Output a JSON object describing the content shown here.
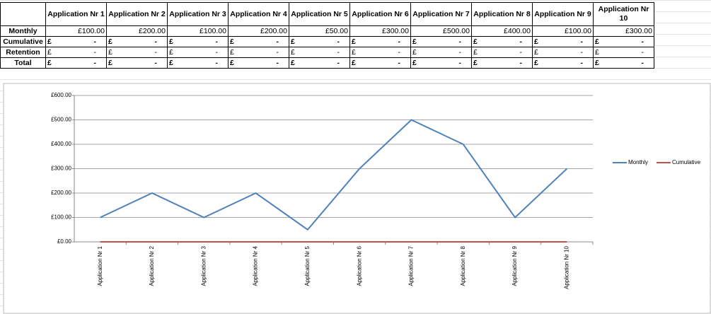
{
  "table": {
    "header": [
      "Application Nr 1",
      "Application Nr 2",
      "Application Nr 3",
      "Application Nr 4",
      "Application Nr 5",
      "Application Nr 6",
      "Application Nr 7",
      "Application Nr 8",
      "Application Nr 9",
      "Application Nr 10"
    ],
    "rows": [
      {
        "label": "Monthly",
        "cells": [
          "£100.00",
          "£200.00",
          "£100.00",
          "£200.00",
          "£50.00",
          "£300.00",
          "£500.00",
          "£400.00",
          "£100.00",
          "£300.00"
        ]
      },
      {
        "label": "Cumulative",
        "cells": [
          {
            "currency": "£",
            "amount": "-"
          },
          {
            "currency": "£",
            "amount": "-"
          },
          {
            "currency": "£",
            "amount": "-"
          },
          {
            "currency": "£",
            "amount": "-"
          },
          {
            "currency": "£",
            "amount": "-"
          },
          {
            "currency": "£",
            "amount": "-"
          },
          {
            "currency": "£",
            "amount": "-"
          },
          {
            "currency": "£",
            "amount": "-"
          },
          {
            "currency": "£",
            "amount": "-"
          },
          {
            "currency": "£",
            "amount": "-"
          }
        ]
      },
      {
        "label": "Retention",
        "cells": [
          {
            "currency": "£",
            "amount": "-"
          },
          {
            "currency": "£",
            "amount": "-"
          },
          {
            "currency": "£",
            "amount": "-"
          },
          {
            "currency": "£",
            "amount": "-"
          },
          {
            "currency": "£",
            "amount": "-"
          },
          {
            "currency": "£",
            "amount": "-"
          },
          {
            "currency": "£",
            "amount": "-"
          },
          {
            "currency": "£",
            "amount": "-"
          },
          {
            "currency": "£",
            "amount": "-"
          },
          {
            "currency": "£",
            "amount": "-"
          }
        ]
      },
      {
        "label": "Total",
        "cells": [
          {
            "currency": "£",
            "amount": "-"
          },
          {
            "currency": "£",
            "amount": "-"
          },
          {
            "currency": "£",
            "amount": "-"
          },
          {
            "currency": "£",
            "amount": "-"
          },
          {
            "currency": "£",
            "amount": "-"
          },
          {
            "currency": "£",
            "amount": "-"
          },
          {
            "currency": "£",
            "amount": "-"
          },
          {
            "currency": "£",
            "amount": "-"
          },
          {
            "currency": "£",
            "amount": "-"
          },
          {
            "currency": "£",
            "amount": "-"
          }
        ]
      }
    ]
  },
  "chart_data": {
    "type": "line",
    "categories": [
      "Application Nr 1",
      "Application Nr 2",
      "Application Nr 3",
      "Application Nr 4",
      "Application Nr 5",
      "Application Nr 6",
      "Application Nr 7",
      "Application Nr 8",
      "Application Nr 9",
      "Application Nr 10"
    ],
    "series": [
      {
        "name": "Monthly",
        "color": "#4f81bd",
        "values": [
          100,
          200,
          100,
          200,
          50,
          300,
          500,
          400,
          100,
          300
        ]
      },
      {
        "name": "Cumulative",
        "color": "#c0504d",
        "values": [
          0,
          0,
          0,
          0,
          0,
          0,
          0,
          0,
          0,
          0
        ]
      }
    ],
    "ylim": [
      0,
      600
    ],
    "yticks": [
      {
        "value": 0,
        "label": "£0.00"
      },
      {
        "value": 100,
        "label": "£100.00"
      },
      {
        "value": 200,
        "label": "£200.00"
      },
      {
        "value": 300,
        "label": "£300.00"
      },
      {
        "value": 400,
        "label": "£400.00"
      },
      {
        "value": 500,
        "label": "£500.00"
      },
      {
        "value": 600,
        "label": "£600.00"
      }
    ],
    "grid": true,
    "legend": "right"
  }
}
